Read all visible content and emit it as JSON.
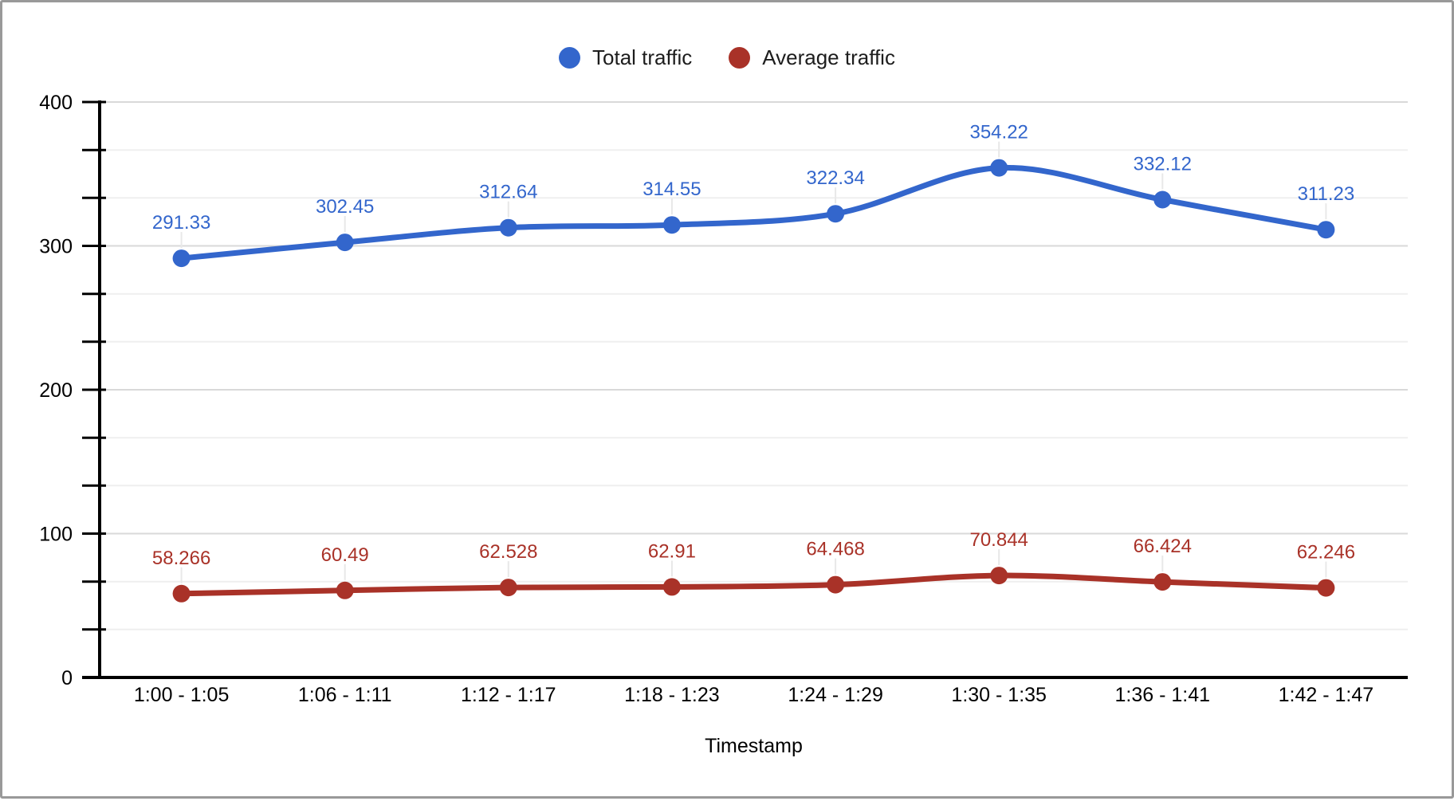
{
  "chart_data": {
    "type": "line",
    "title": "",
    "xlabel": "Timestamp",
    "ylabel": "",
    "categories": [
      "1:00 - 1:05",
      "1:06 - 1:11",
      "1:12 - 1:17",
      "1:18 - 1:23",
      "1:24 - 1:29",
      "1:30 - 1:35",
      "1:36 - 1:41",
      "1:42 - 1:47"
    ],
    "series": [
      {
        "name": "Total traffic",
        "color": "#3366CC",
        "values": [
          291.33,
          302.45,
          312.64,
          314.55,
          322.34,
          354.22,
          332.12,
          311.23
        ]
      },
      {
        "name": "Average traffic",
        "color": "#A93228",
        "values": [
          58.266,
          60.49,
          62.528,
          62.91,
          64.468,
          70.844,
          66.424,
          62.246
        ]
      }
    ],
    "ylim": [
      0,
      400
    ],
    "yticks": [
      0,
      100,
      200,
      300,
      400
    ],
    "minor_gridlines_between": 2,
    "grid": true,
    "smooth": true,
    "point_labels": true,
    "legend_position": "top"
  },
  "colors": {
    "major_gridline": "#D9D9D9",
    "minor_gridline": "#EFEFEF",
    "axis": "#000000",
    "label_leader": "#E8E8E8",
    "frame_border": "#999999"
  }
}
